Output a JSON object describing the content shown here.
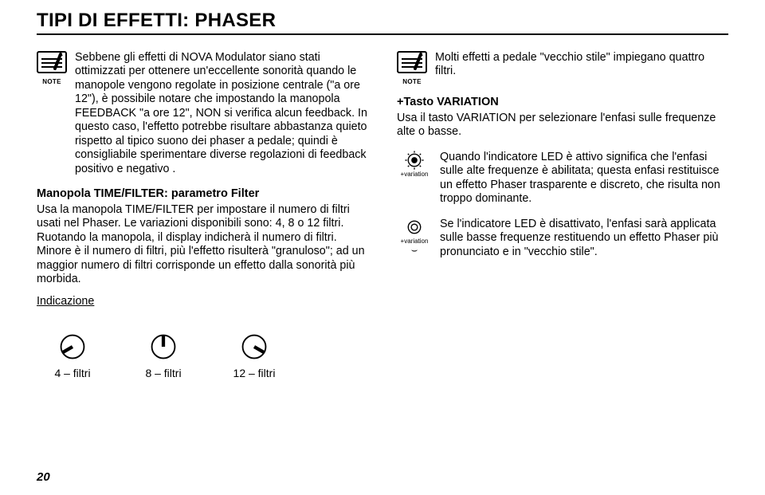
{
  "title": "TIPI DI EFFETTI: PHASER",
  "note_label": "NOTE",
  "left": {
    "note_text": "Sebbene gli effetti di NOVA Modulator siano stati ottimizzati per ottenere un'eccellente sonorità quando le manopole vengono regolate in posizione centrale (\"a ore 12\"), è possibile notare che impostando la manopola FEEDBACK \"a ore 12\", NON si verifica alcun feedback. In questo caso, l'effetto potrebbe risultare abbastanza quieto rispetto al tipico suono dei phaser a pedale; quindi è consigliabile sperimentare diverse regolazioni di feedback positivo e negativo .",
    "heading": "Manopola TIME/FILTER: parametro Filter",
    "para": "Usa la manopola TIME/FILTER per impostare il numero di filtri usati nel Phaser. Le variazioni disponibili sono: 4, 8 o 12 filtri. Ruotando la manopola, il display indicherà il numero di filtri. Minore è il numero di filtri, più l'effetto risulterà \"granuloso\"; ad un maggior numero di filtri corrisponde un effetto dalla sonorità più morbida.",
    "indication": "Indicazione",
    "knobs": [
      {
        "caption": "4 – filtri",
        "angle": -120
      },
      {
        "caption": "8 – filtri",
        "angle": 0
      },
      {
        "caption": "12 – filtri",
        "angle": 120
      }
    ]
  },
  "right": {
    "note_text": "Molti effetti a pedale \"vecchio stile\" impiegano quattro filtri.",
    "heading": "+Tasto VARIATION",
    "para": "Usa il tasto VARIATION per selezionare l'enfasi sulle frequenze alte o basse.",
    "led_label": "+variation",
    "led1_text": "Quando l'indicatore LED è attivo significa che l'enfasi sulle alte frequenze è abilitata; questa enfasi restituisce un effetto Phaser trasparente e discreto, che risulta non troppo dominante.",
    "led2_text": "Se l'indicatore LED è disattivato, l'enfasi sarà applicata sulle basse frequenze restituendo un effetto Phaser più pronunciato e in \"vecchio stile\"."
  },
  "page_number": "20"
}
